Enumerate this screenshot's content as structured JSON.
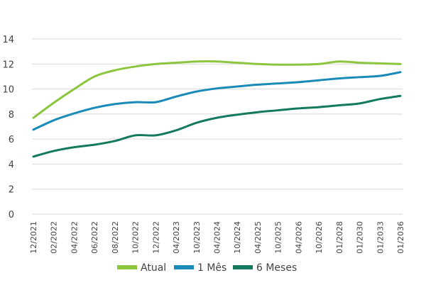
{
  "chart_data": {
    "type": "line",
    "title": "",
    "xlabel": "",
    "ylabel": "",
    "ylim": [
      0,
      14
    ],
    "y_ticks": [
      0,
      2,
      4,
      6,
      8,
      10,
      12,
      14
    ],
    "grid": true,
    "legend_position": "bottom",
    "x": [
      "12/2021",
      "02/2022",
      "04/2022",
      "06/2022",
      "08/2022",
      "10/2022",
      "12/2022",
      "04/2023",
      "10/2023",
      "04/2024",
      "10/2024",
      "04/2025",
      "10/2025",
      "04/2026",
      "10/2026",
      "01/2028",
      "01/2030",
      "01/2033",
      "01/2036"
    ],
    "series": [
      {
        "name": "Atual",
        "color": "#8cc63f",
        "values": [
          7.7,
          8.9,
          10.0,
          11.0,
          11.5,
          11.8,
          12.0,
          12.1,
          12.2,
          12.2,
          12.1,
          12.0,
          11.95,
          11.95,
          12.0,
          12.2,
          12.1,
          12.05,
          12.0
        ]
      },
      {
        "name": "1 Mês",
        "color": "#1a8bb8",
        "values": [
          6.75,
          7.5,
          8.05,
          8.5,
          8.8,
          8.95,
          8.95,
          9.4,
          9.8,
          10.05,
          10.2,
          10.35,
          10.45,
          10.55,
          10.7,
          10.85,
          10.95,
          11.05,
          11.35
        ]
      },
      {
        "name": "6 Meses",
        "color": "#137a5e",
        "values": [
          4.6,
          5.05,
          5.35,
          5.55,
          5.85,
          6.3,
          6.3,
          6.7,
          7.3,
          7.7,
          7.95,
          8.15,
          8.3,
          8.45,
          8.55,
          8.7,
          8.85,
          9.2,
          9.45
        ]
      }
    ]
  }
}
